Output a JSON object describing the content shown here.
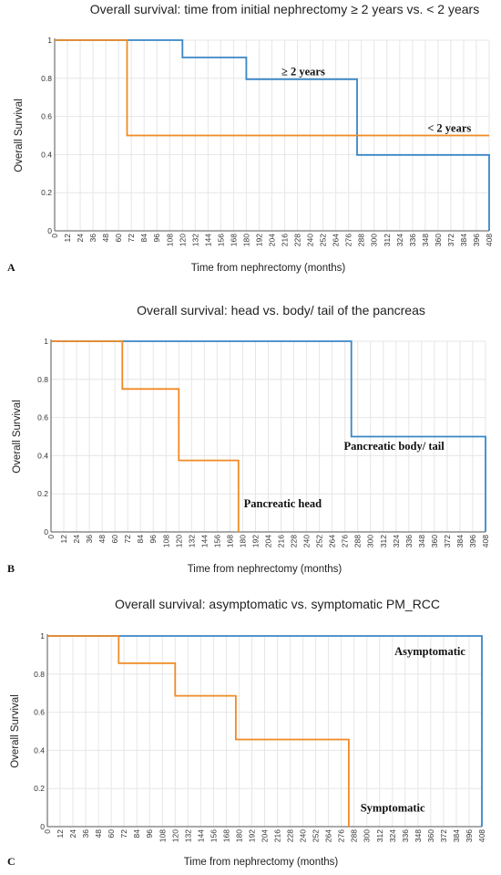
{
  "chart_data": [
    {
      "type": "line",
      "step": true,
      "panel": "A",
      "title": "Overall survival: time from initial nephrectomy ≥ 2 years vs. < 2 years",
      "xlabel": "Time from nephrectomy (months)",
      "ylabel": "Overall Survival",
      "xlim": [
        0,
        408
      ],
      "ylim": [
        0,
        1
      ],
      "x_ticks": [
        "0",
        "12",
        "24",
        "36",
        "48",
        "60",
        "72",
        "84",
        "96",
        "108",
        "120",
        "132",
        "144",
        "156",
        "168",
        "180",
        "192",
        "204",
        "216",
        "228",
        "240",
        "252",
        "264",
        "276",
        "288",
        "300",
        "312",
        "324",
        "336",
        "348",
        "360",
        "372",
        "384",
        "396",
        "408"
      ],
      "y_ticks": [
        "0",
        "0.2",
        "0.4",
        "0.6",
        "0.8",
        "1"
      ],
      "grid": true,
      "series": [
        {
          "color": "#3a86c6",
          "x": [
            0,
            120,
            120,
            180,
            180,
            284,
            284,
            408,
            408
          ],
          "y": [
            1,
            1,
            0.909,
            0.909,
            0.795,
            0.795,
            0.398,
            0.398,
            0
          ]
        },
        {
          "color": "#f08a24",
          "x": [
            0,
            68,
            68,
            408
          ],
          "y": [
            1,
            1,
            0.5,
            0.5
          ]
        }
      ],
      "annotations": [
        {
          "text": "≥ 2 years",
          "x": 213,
          "y": 0.815
        },
        {
          "text": "< 2 years",
          "x": 350,
          "y": 0.52
        }
      ]
    },
    {
      "type": "line",
      "step": true,
      "panel": "B",
      "title": "Overall survival: head vs. body/ tail of the pancreas",
      "xlabel": "Time from nephrectomy (months)",
      "ylabel": "Overall Survival",
      "xlim": [
        0,
        408
      ],
      "ylim": [
        0,
        1
      ],
      "x_ticks": [
        "0",
        "12",
        "24",
        "36",
        "48",
        "60",
        "72",
        "84",
        "96",
        "108",
        "120",
        "132",
        "144",
        "156",
        "168",
        "180",
        "192",
        "204",
        "216",
        "228",
        "240",
        "252",
        "264",
        "276",
        "288",
        "300",
        "312",
        "324",
        "336",
        "348",
        "360",
        "372",
        "384",
        "396",
        "408"
      ],
      "y_ticks": [
        "0",
        "0.2",
        "0.4",
        "0.6",
        "0.8",
        "1"
      ],
      "grid": true,
      "series": [
        {
          "color": "#3a86c6",
          "x": [
            0,
            282,
            282,
            408,
            408
          ],
          "y": [
            1,
            1,
            0.5,
            0.5,
            0
          ]
        },
        {
          "color": "#f08a24",
          "x": [
            0,
            67,
            67,
            120,
            120,
            176,
            176
          ],
          "y": [
            1,
            1,
            0.75,
            0.75,
            0.375,
            0.375,
            0
          ]
        }
      ],
      "annotations": [
        {
          "text": "Pancreatic body/ tail",
          "x": 275,
          "y": 0.43
        },
        {
          "text": "Pancreatic head",
          "x": 181,
          "y": 0.13
        }
      ]
    },
    {
      "type": "line",
      "step": true,
      "panel": "C",
      "title": "Overall survival: asymptomatic vs. symptomatic PM_RCC",
      "xlabel": "Time from nephrectomy (months)",
      "ylabel": "Overall Survival",
      "xlim": [
        0,
        408
      ],
      "ylim": [
        0,
        1
      ],
      "x_ticks": [
        "0",
        "12",
        "24",
        "36",
        "48",
        "60",
        "72",
        "84",
        "96",
        "108",
        "120",
        "132",
        "144",
        "156",
        "168",
        "180",
        "192",
        "204",
        "216",
        "228",
        "240",
        "252",
        "264",
        "276",
        "288",
        "300",
        "312",
        "324",
        "336",
        "348",
        "360",
        "372",
        "384",
        "396",
        "408"
      ],
      "y_ticks": [
        "0",
        "0.2",
        "0.4",
        "0.6",
        "0.8",
        "1"
      ],
      "grid": true,
      "series": [
        {
          "color": "#3a86c6",
          "x": [
            0,
            408,
            408
          ],
          "y": [
            1,
            1,
            0
          ]
        },
        {
          "color": "#f08a24",
          "x": [
            0,
            67,
            67,
            120,
            120,
            177,
            177,
            283,
            283
          ],
          "y": [
            1,
            1,
            0.857,
            0.857,
            0.686,
            0.686,
            0.457,
            0.457,
            0
          ]
        }
      ],
      "annotations": [
        {
          "text": "Asymptomatic",
          "x": 326,
          "y": 0.9
        },
        {
          "text": "Symptomatic",
          "x": 294,
          "y": 0.08
        }
      ]
    }
  ]
}
